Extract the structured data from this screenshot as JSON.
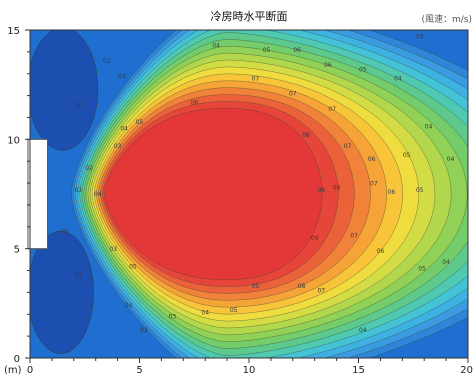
{
  "chart_data": {
    "type": "heatmap",
    "subtype": "filled-contour",
    "title": "冷房時水平断面",
    "unit_note": "(風速：m/s)",
    "x_unit_label": "(m)",
    "xlim": [
      0,
      20
    ],
    "ylim": [
      0,
      15
    ],
    "x_ticks": [
      "0",
      "5",
      "10",
      "15",
      "20"
    ],
    "y_ticks": [
      "0",
      "5",
      "10",
      "15"
    ],
    "grid": false,
    "outlet": {
      "x_range": [
        0,
        0.8
      ],
      "y_range": [
        5,
        10.0
      ]
    },
    "jet": {
      "center_x": 9,
      "center_y": 7.5,
      "peak_speed_m_s": 0.95
    },
    "contour_levels": [
      0.1,
      0.15,
      0.2,
      0.25,
      0.3,
      0.35,
      0.4,
      0.45,
      0.5,
      0.55,
      0.6,
      0.65,
      0.7,
      0.75,
      0.8,
      0.85,
      0.9
    ],
    "contour_labels": [
      {
        "x": 3.5,
        "y": 13.5,
        "text": "02"
      },
      {
        "x": 2.2,
        "y": 11.5,
        "text": "02"
      },
      {
        "x": 4.2,
        "y": 12.8,
        "text": "03"
      },
      {
        "x": 8.5,
        "y": 14.2,
        "text": "04"
      },
      {
        "x": 10.8,
        "y": 14.0,
        "text": "05"
      },
      {
        "x": 12.2,
        "y": 14.0,
        "text": "06"
      },
      {
        "x": 13.6,
        "y": 13.3,
        "text": "06"
      },
      {
        "x": 15.2,
        "y": 13.1,
        "text": "05"
      },
      {
        "x": 16.8,
        "y": 12.7,
        "text": "04"
      },
      {
        "x": 17.8,
        "y": 14.6,
        "text": "03"
      },
      {
        "x": 10.3,
        "y": 12.7,
        "text": "07"
      },
      {
        "x": 12.0,
        "y": 12.0,
        "text": "07"
      },
      {
        "x": 7.5,
        "y": 11.6,
        "text": "08"
      },
      {
        "x": 13.8,
        "y": 11.3,
        "text": "07"
      },
      {
        "x": 12.6,
        "y": 10.1,
        "text": "08"
      },
      {
        "x": 14.5,
        "y": 9.6,
        "text": "07"
      },
      {
        "x": 15.6,
        "y": 9.0,
        "text": "06"
      },
      {
        "x": 17.2,
        "y": 9.2,
        "text": "05"
      },
      {
        "x": 18.2,
        "y": 10.5,
        "text": "04"
      },
      {
        "x": 19.2,
        "y": 9.0,
        "text": "04"
      },
      {
        "x": 13.3,
        "y": 7.6,
        "text": "08"
      },
      {
        "x": 14.0,
        "y": 7.7,
        "text": "08"
      },
      {
        "x": 15.7,
        "y": 7.9,
        "text": "07"
      },
      {
        "x": 16.5,
        "y": 7.5,
        "text": "06"
      },
      {
        "x": 17.8,
        "y": 7.6,
        "text": "05"
      },
      {
        "x": 13.0,
        "y": 5.4,
        "text": "09"
      },
      {
        "x": 14.8,
        "y": 5.5,
        "text": "07"
      },
      {
        "x": 16.0,
        "y": 4.8,
        "text": "06"
      },
      {
        "x": 17.9,
        "y": 4.0,
        "text": "05"
      },
      {
        "x": 19.0,
        "y": 4.3,
        "text": "04"
      },
      {
        "x": 12.4,
        "y": 3.2,
        "text": "08"
      },
      {
        "x": 13.3,
        "y": 3.0,
        "text": "07"
      },
      {
        "x": 10.3,
        "y": 3.2,
        "text": "05"
      },
      {
        "x": 9.3,
        "y": 2.1,
        "text": "05"
      },
      {
        "x": 8.0,
        "y": 2.0,
        "text": "04"
      },
      {
        "x": 6.5,
        "y": 1.8,
        "text": "03"
      },
      {
        "x": 5.2,
        "y": 1.2,
        "text": "02"
      },
      {
        "x": 15.2,
        "y": 1.2,
        "text": "04"
      },
      {
        "x": 2.2,
        "y": 3.7,
        "text": "02"
      },
      {
        "x": 1.6,
        "y": 5.7,
        "text": "02"
      },
      {
        "x": 0.4,
        "y": 9.6,
        "text": "02"
      },
      {
        "x": 0.4,
        "y": 8.2,
        "text": "02"
      },
      {
        "x": 3.1,
        "y": 7.4,
        "text": "04"
      },
      {
        "x": 2.2,
        "y": 7.6,
        "text": "03"
      },
      {
        "x": 2.7,
        "y": 8.6,
        "text": "02"
      },
      {
        "x": 4.0,
        "y": 9.6,
        "text": "03"
      },
      {
        "x": 4.3,
        "y": 10.4,
        "text": "04"
      },
      {
        "x": 5.0,
        "y": 10.7,
        "text": "05"
      },
      {
        "x": 3.8,
        "y": 4.9,
        "text": "03"
      },
      {
        "x": 4.7,
        "y": 4.1,
        "text": "05"
      },
      {
        "x": 4.5,
        "y": 2.3,
        "text": "04"
      }
    ]
  }
}
